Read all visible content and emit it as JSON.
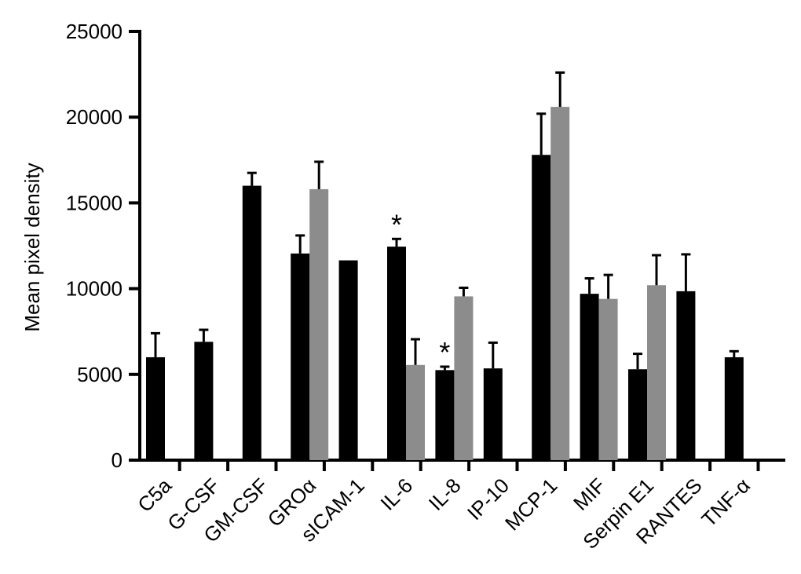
{
  "chart_data": {
    "type": "bar",
    "title": "",
    "xlabel": "",
    "ylabel": "Mean pixel density",
    "ylim": [
      0,
      25000
    ],
    "yticks": [
      0,
      5000,
      10000,
      15000,
      20000,
      25000
    ],
    "categories": [
      "C5a",
      "G-CSF",
      "GM-CSF",
      "GROα",
      "sICAM-1",
      "IL-6",
      "IL-8",
      "IP-10",
      "MCP-1",
      "MIF",
      "Serpin E1",
      "RANTES",
      "TNF-α"
    ],
    "series": [
      {
        "color": "#000000",
        "values": [
          6000,
          6900,
          16000,
          12050,
          11650,
          12450,
          5250,
          5350,
          17800,
          9700,
          5300,
          9850,
          6000
        ],
        "errors": [
          1400,
          700,
          750,
          1050,
          0,
          450,
          200,
          1500,
          2400,
          900,
          900,
          2150,
          350
        ]
      },
      {
        "color": "#8c8c8c",
        "values": [
          null,
          null,
          null,
          15800,
          null,
          5550,
          9550,
          null,
          20600,
          9400,
          10200,
          null,
          null
        ],
        "errors": [
          null,
          null,
          null,
          1600,
          null,
          1500,
          500,
          null,
          2000,
          1400,
          1750,
          null,
          null
        ]
      }
    ],
    "annotations": [
      {
        "category": "IL-6",
        "series": 0,
        "text": "*"
      },
      {
        "category": "IL-8",
        "series": 0,
        "text": "*"
      }
    ],
    "grid": false,
    "legend": "none"
  }
}
